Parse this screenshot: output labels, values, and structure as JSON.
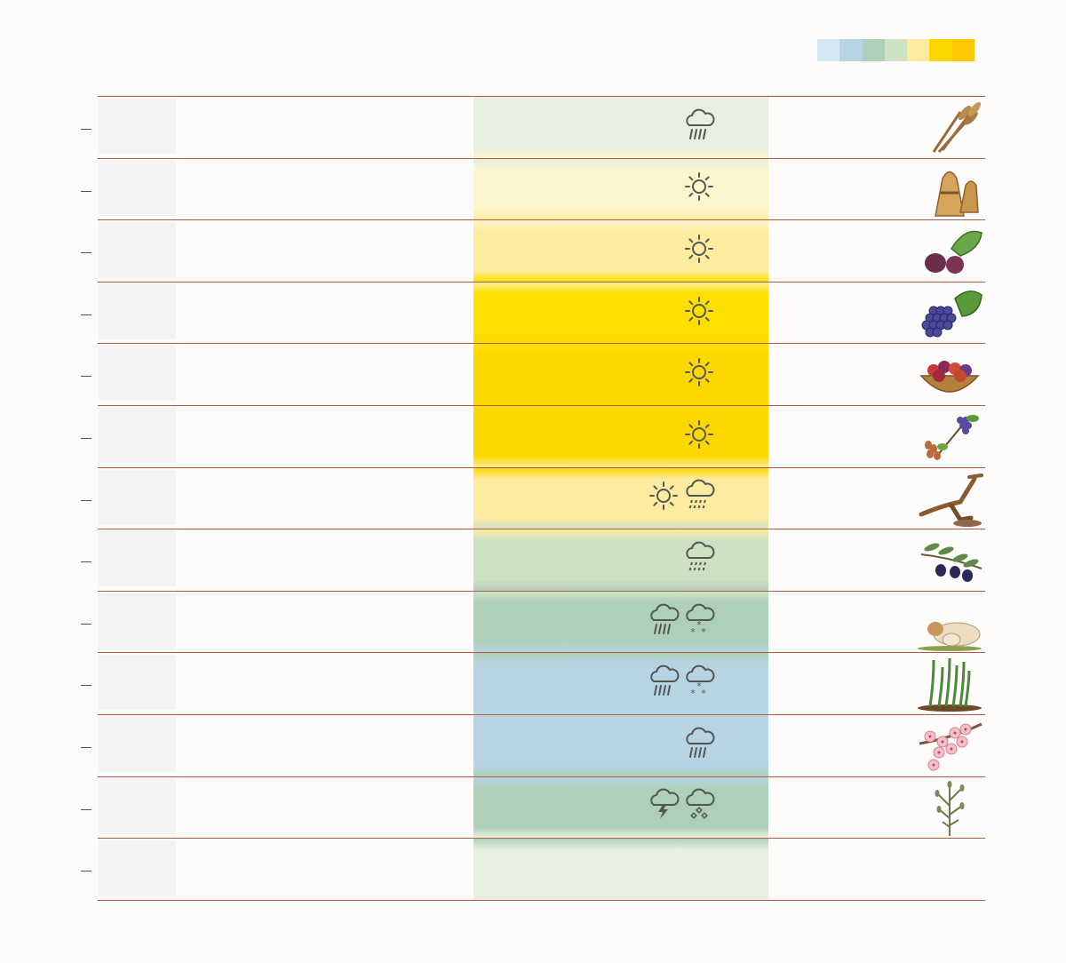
{
  "legend": {
    "colors": [
      "#d4e8f3",
      "#b7d4e3",
      "#aecfb8",
      "#cde2c3",
      "#fdeaa0",
      "#fdd600",
      "#fdc800"
    ]
  },
  "months": [
    {
      "weather": [
        "rain-icon"
      ],
      "band": "#e6efe0",
      "illustration": "wheat-ears-icon"
    },
    {
      "weather": [
        "sun-icon"
      ],
      "band": "#fdf5cc",
      "illustration": "wheat-sheaves-icon"
    },
    {
      "weather": [
        "sun-icon"
      ],
      "band": "#fdeba0",
      "illustration": "figs-icon"
    },
    {
      "weather": [
        "sun-icon"
      ],
      "band": "#fde000",
      "illustration": "grapes-icon"
    },
    {
      "weather": [
        "sun-icon"
      ],
      "band": "#fdd800",
      "illustration": "fruit-basket-icon"
    },
    {
      "weather": [
        "sun-icon"
      ],
      "band": "#fdd800",
      "illustration": "dates-grapes-icon"
    },
    {
      "weather": [
        "sun-icon",
        "drizzle-icon"
      ],
      "band": "#fdeba0",
      "illustration": "plough-icon"
    },
    {
      "weather": [
        "drizzle-icon"
      ],
      "band": "#cde2c3",
      "illustration": "olives-icon"
    },
    {
      "weather": [
        "rain-icon",
        "snow-icon"
      ],
      "band": "#aecfb8",
      "illustration": "sheep-icon"
    },
    {
      "weather": [
        "rain-icon",
        "snow-icon"
      ],
      "band": "#b7d4e3",
      "illustration": "sprouts-icon"
    },
    {
      "weather": [
        "rain-icon"
      ],
      "band": "#b7d4e3",
      "illustration": "almond-blossom-icon"
    },
    {
      "weather": [
        "thunder-icon",
        "hail-icon"
      ],
      "band": "#aecfb8",
      "illustration": "flax-icon"
    },
    {
      "weather": [],
      "band": "#e6efe0",
      "illustration": ""
    }
  ]
}
